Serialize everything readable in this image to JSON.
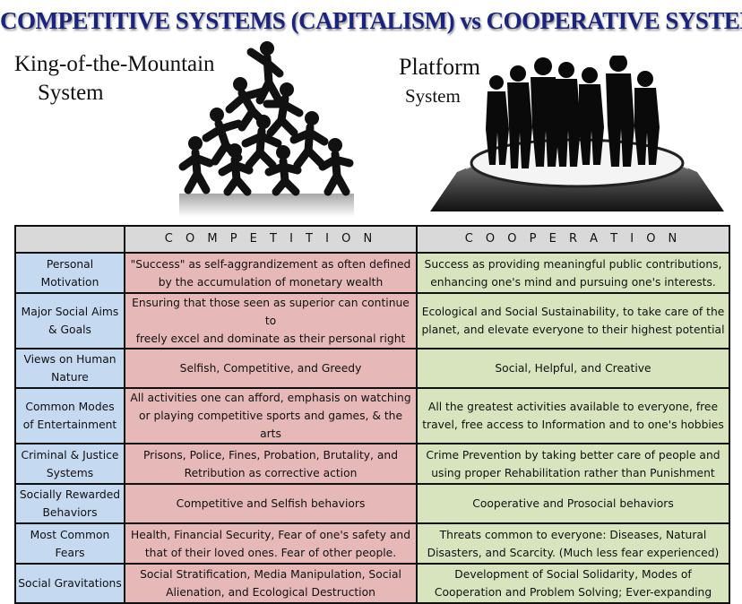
{
  "title": "COMPETITIVE SYSTEMS (CAPITALISM) vs COOPERATIVE SYSTEMS",
  "left_label": {
    "line1": "King-of-the-Mountain",
    "line2": "System"
  },
  "right_label": {
    "line1": "Platform",
    "line2": "System"
  },
  "colors": {
    "title": "#1a237e",
    "row_header_bg": "#c5d9f1",
    "competition_bg": "#e6b9b8",
    "cooperation_bg": "#d7e4bd",
    "column_header_bg": "#d9d9d9"
  },
  "icons": {
    "left": "human-pyramid-silhouette-icon",
    "right": "people-on-platform-silhouette-icon"
  },
  "table": {
    "col_competition": "C O M P E T I T I O N",
    "col_cooperation": "C O O P E R A T I O N",
    "rows": [
      {
        "h1": "Personal",
        "h2": "Motivation",
        "c1": "\"Success\" as self-aggrandizement as often defined",
        "c2": "by the accumulation of monetary wealth",
        "p1": "Success as providing meaningful public contributions,",
        "p2": "enhancing one's mind and pursuing one's interests."
      },
      {
        "h1": "Major Social Aims",
        "h2": "& Goals",
        "c1": "Ensuring that those seen as superior can continue to",
        "c2": "freely excel and dominate as their personal right",
        "p1": "Ecological and Social Sustainability, to take care of the",
        "p2": "planet, and elevate everyone to their highest potential"
      },
      {
        "h1": "Views on Human",
        "h2": "Nature",
        "c1": "Selfish, Competitive, and Greedy",
        "c2": "",
        "p1": "Social, Helpful, and Creative",
        "p2": ""
      },
      {
        "h1": "Common Modes",
        "h2": "of Entertainment",
        "c1": "All activities one can afford, emphasis on watching",
        "c2": "or playing competitive sports and games, & the arts",
        "p1": "All the greatest activities available to everyone, free",
        "p2": "travel, free access to Information and to one's hobbies"
      },
      {
        "h1": "Criminal & Justice",
        "h2": "Systems",
        "c1": "Prisons, Police, Fines, Probation, Brutality, and",
        "c2": "Retribution as corrective action",
        "p1": "Crime Prevention by taking better care of people and",
        "p2": "using proper Rehabilitation rather than Punishment"
      },
      {
        "h1": "Socially Rewarded",
        "h2": "Behaviors",
        "c1": "Competitive and Selfish behaviors",
        "c2": "",
        "p1": "Cooperative and Prosocial behaviors",
        "p2": ""
      },
      {
        "h1": "Most Common",
        "h2": "Fears",
        "c1": "Health, Financial Security, Fear of one's safety and",
        "c2": "that of their loved ones. Fear of other people.",
        "p1": "Threats common to everyone: Diseases, Natural",
        "p2": "Disasters, and Scarcity. (Much less fear experienced)"
      },
      {
        "h1": "Social Gravitations",
        "h2": "",
        "c1": "Social Stratification, Media Manipulation, Social",
        "c2": "Alienation, and Ecological Destruction",
        "p1": "Development of Social Solidarity, Modes of",
        "p2": "Cooperation and Problem Solving; Ever-expanding"
      }
    ]
  }
}
